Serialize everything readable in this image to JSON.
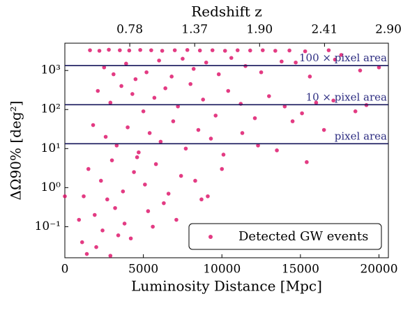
{
  "chart_data": {
    "type": "scatter",
    "xlabel": "Luminosity Distance [Mpc]",
    "ylabel": "ΔΩ90% [deg²]",
    "x2label": "Redshift z",
    "xlim": [
      0,
      20600
    ],
    "ylim": [
      0.016,
      5000
    ],
    "yscale": "log",
    "xticks": [
      0,
      5000,
      10000,
      15000,
      20000
    ],
    "yticks": [
      {
        "value": 0.1,
        "label": "10⁻¹"
      },
      {
        "value": 1,
        "label": "10⁰"
      },
      {
        "value": 10,
        "label": "10¹"
      },
      {
        "value": 100,
        "label": "10²"
      },
      {
        "value": 1000,
        "label": "10³"
      }
    ],
    "x2ticks": [
      {
        "value": 4133,
        "label": "0.78"
      },
      {
        "value": 8267,
        "label": "1.37"
      },
      {
        "value": 12400,
        "label": "1.90"
      },
      {
        "value": 16533,
        "label": "2.41"
      },
      {
        "value": 20600,
        "label": "2.90"
      }
    ],
    "hlines": [
      {
        "value": 13.3,
        "label": "pixel area"
      },
      {
        "value": 133,
        "label": "10 × pixel area"
      },
      {
        "value": 1330,
        "label": "100 × pixel area"
      }
    ],
    "hline_color": "#14145a",
    "hline_text_color": "#2e2e82",
    "legend": "lower right",
    "series": [
      {
        "name": "Detected GW events",
        "color": "#dc0a64",
        "x": [
          1600,
          2200,
          2800,
          3500,
          4100,
          4800,
          5500,
          6200,
          7000,
          7800,
          8600,
          9400,
          10200,
          11000,
          11800,
          12600,
          13400,
          14300,
          15300,
          16800,
          17600,
          2500,
          3100,
          3900,
          4500,
          5200,
          6000,
          6800,
          7500,
          8200,
          9000,
          9800,
          10600,
          11500,
          12500,
          13800,
          14700,
          15600,
          17200,
          18800,
          20000,
          2100,
          2900,
          3600,
          4300,
          5000,
          5700,
          6400,
          7200,
          8000,
          8800,
          9600,
          10400,
          11200,
          12100,
          13000,
          14000,
          15100,
          16000,
          17100,
          18500,
          19200,
          1800,
          2600,
          3300,
          4000,
          4700,
          5400,
          6100,
          6900,
          7700,
          8500,
          9300,
          10100,
          11300,
          12300,
          13500,
          15400,
          16500,
          14500,
          1500,
          2300,
          3000,
          3700,
          4400,
          5100,
          5800,
          6600,
          7400,
          8300,
          9100,
          10000,
          1200,
          2700,
          4600,
          1900,
          2400,
          3200,
          3800,
          4200,
          5300,
          6300,
          7100,
          2000,
          1400,
          3400,
          8700,
          900,
          0,
          5600,
          1100,
          2900
        ],
        "y": [
          3300,
          3200,
          3400,
          3300,
          3250,
          3350,
          3300,
          3200,
          3300,
          3350,
          3250,
          3300,
          3200,
          3300,
          3250,
          3300,
          3200,
          3250,
          3100,
          3300,
          2500,
          1200,
          800,
          1500,
          600,
          900,
          1800,
          700,
          2000,
          1100,
          1600,
          800,
          2100,
          1300,
          900,
          1700,
          1600,
          700,
          1900,
          1000,
          1200,
          300,
          150,
          400,
          250,
          90,
          200,
          350,
          120,
          450,
          180,
          70,
          300,
          140,
          60,
          220,
          120,
          80,
          150,
          170,
          90,
          130,
          40,
          20,
          12,
          35,
          8,
          25,
          15,
          50,
          10,
          30,
          18,
          7,
          25,
          12,
          9,
          4.5,
          30,
          50,
          3,
          1.5,
          5,
          0.8,
          2.5,
          1.2,
          4,
          0.7,
          2,
          1.5,
          0.6,
          3,
          0.6,
          0.5,
          6,
          0.2,
          0.08,
          0.3,
          0.12,
          0.05,
          0.25,
          0.4,
          0.15,
          0.03,
          0.02,
          0.06,
          0.5,
          0.15,
          0.6,
          0.1,
          0.04,
          0.018
        ]
      }
    ]
  }
}
